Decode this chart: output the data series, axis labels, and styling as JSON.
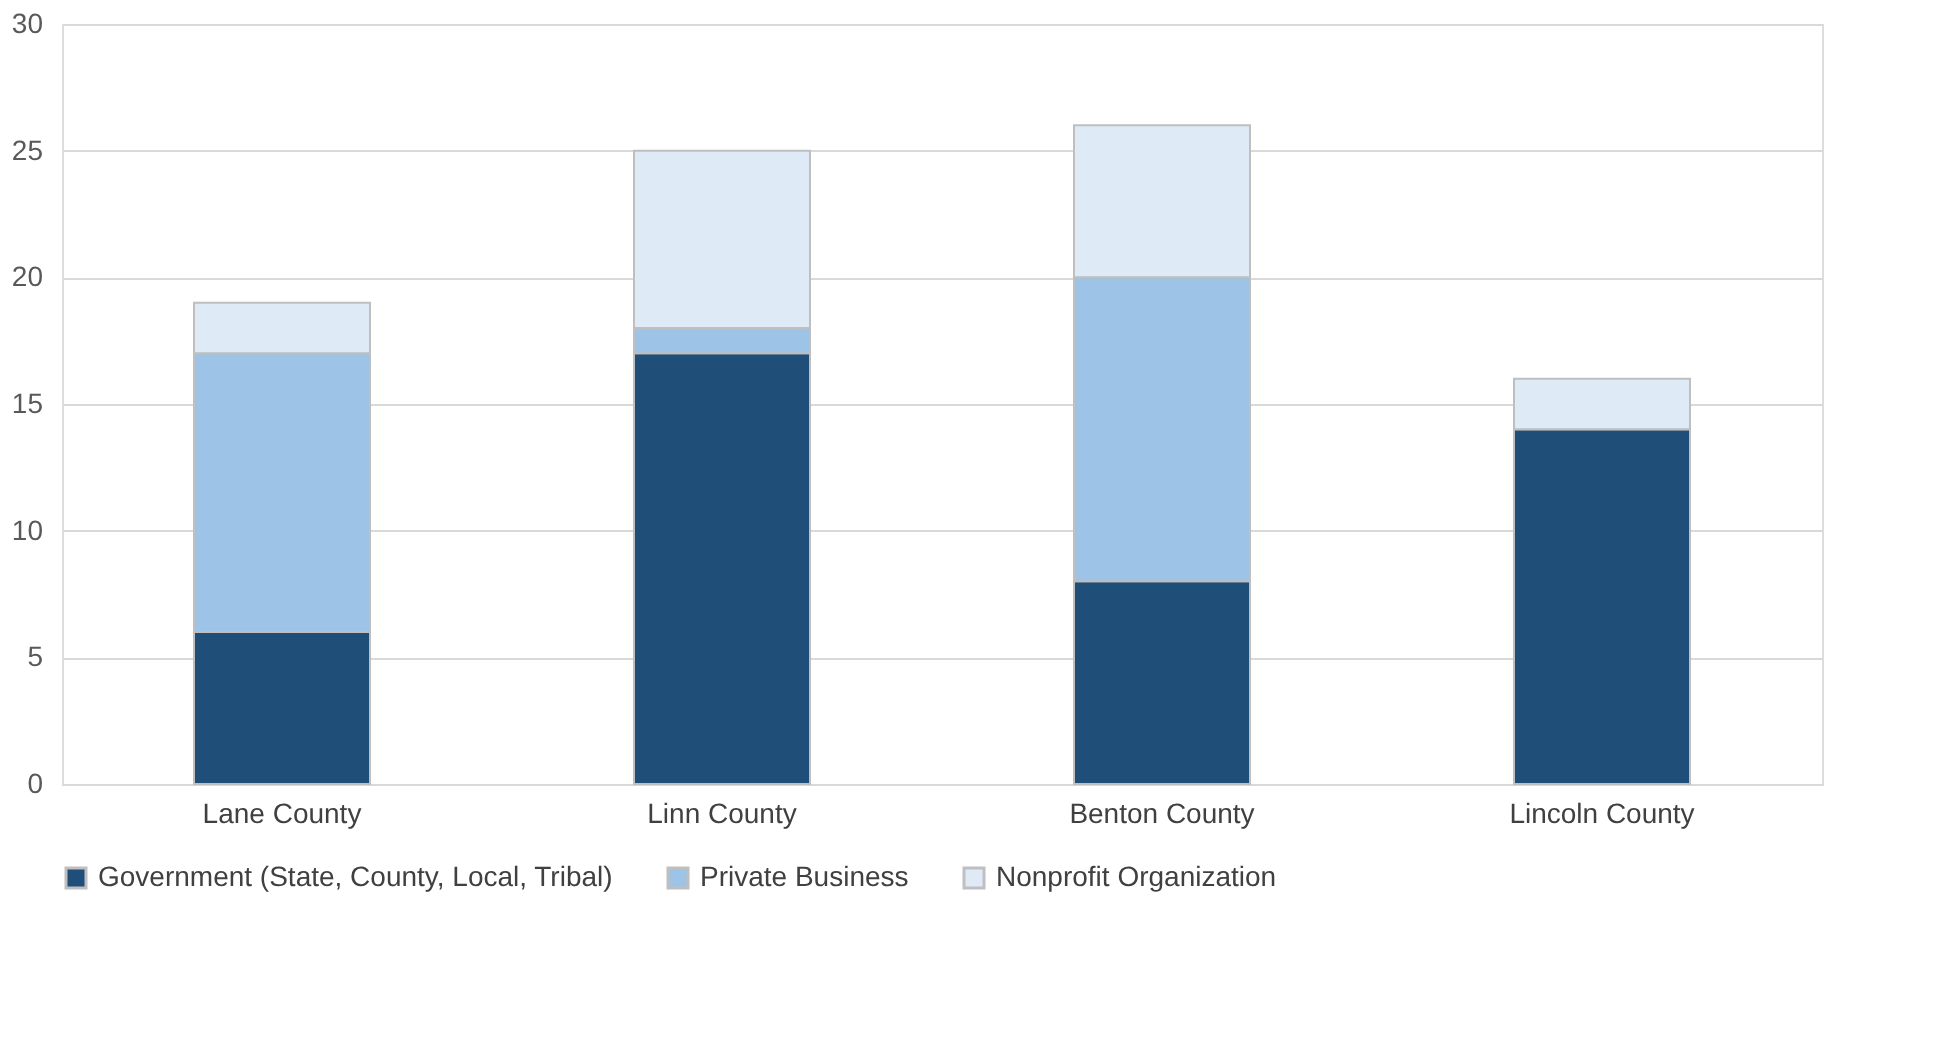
{
  "chart_data": {
    "type": "bar",
    "stacked": true,
    "categories": [
      "Lane County",
      "Linn County",
      "Benton County",
      "Lincoln County"
    ],
    "series": [
      {
        "name": "Government (State, County, Local, Tribal)",
        "color": "#1f4e79",
        "values": [
          6,
          17,
          8,
          14
        ]
      },
      {
        "name": "Private Business",
        "color": "#9dc3e6",
        "values": [
          11,
          1,
          12,
          0
        ]
      },
      {
        "name": "Nonprofit Organization",
        "color": "#deebf7",
        "values": [
          2,
          7,
          6,
          2
        ]
      }
    ],
    "ylim": [
      0,
      30
    ],
    "yticks": [
      0,
      5,
      10,
      15,
      20,
      25,
      30
    ],
    "grid": "y",
    "legend": "bottom"
  }
}
